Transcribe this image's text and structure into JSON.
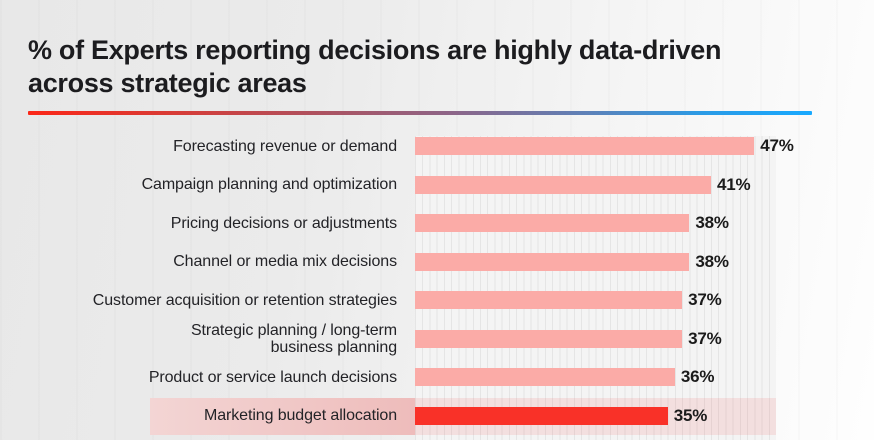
{
  "header": {
    "title_display": "% of Experts reporting decisions are highly data-driven\nacross strategic areas"
  },
  "colors": {
    "title_text": "#1c1c1f",
    "bar": "#fbaba7",
    "bar_highlight": "#f93128",
    "highlight_label_band": "#eebdbc",
    "highlight_plot_tint": "#f7e0df",
    "plot_background": "#f4f4f4",
    "gridline": "#e5e5e5",
    "divider_gradient_start": "#fb2718",
    "divider_gradient_end": "#18a9ff",
    "value_text": "#1b1b1b"
  },
  "chart_data": {
    "type": "bar",
    "orientation": "horizontal",
    "title": "% of Experts reporting decisions are highly data-driven across strategic areas",
    "xlabel": "",
    "ylabel": "",
    "xlim": [
      0,
      50
    ],
    "gridline_interval": 1,
    "grid": "vertical",
    "unit": "%",
    "categories": [
      "Forecasting revenue or demand",
      "Campaign planning and optimization",
      "Pricing decisions or adjustments",
      "Channel or media mix decisions",
      "Customer acquisition or retention strategies",
      "Strategic planning / long-term business planning",
      "Product or service launch decisions",
      "Marketing budget allocation"
    ],
    "labels_display": [
      "Forecasting revenue or demand",
      "Campaign planning and optimization",
      "Pricing decisions or adjustments",
      "Channel or media mix decisions",
      "Customer acquisition or retention strategies",
      "Strategic planning / long-term\nbusiness planning",
      "Product or service launch decisions",
      "Marketing budget allocation"
    ],
    "values": [
      47,
      41,
      38,
      38,
      37,
      37,
      36,
      35
    ],
    "value_labels": [
      "47%",
      "41%",
      "38%",
      "38%",
      "37%",
      "37%",
      "36%",
      "35%"
    ],
    "highlighted_category": "Marketing budget allocation"
  }
}
